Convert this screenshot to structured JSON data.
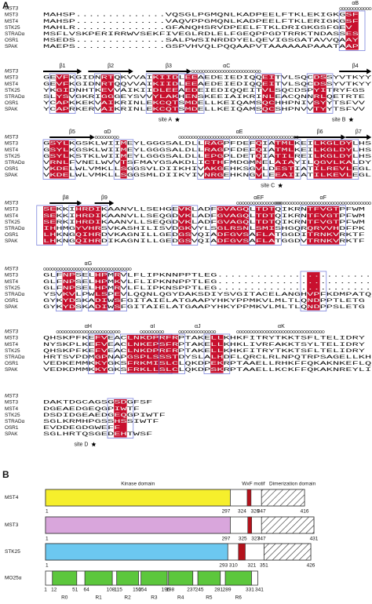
{
  "panel_a": {
    "label": "A",
    "names": [
      "MST3",
      "MST4",
      "STK25",
      "STRADα",
      "OSR1",
      "SPAK"
    ],
    "blocks": [
      {
        "ss_label": "MST3",
        "ss": [
          "αB"
        ],
        "sites": [],
        "rows": [
          "MAHSP..............VQSGLPGMQNLKADPEELFTKLEKIGKGSF",
          "MAHSP..............VAQVPPGMQNLKADPEELFTKLERIGKGSF",
          "MAHLR..............GFANQHSRVDPEELFTKLDRIGKGSFGEV",
          "MSFLVSKPERIRRWVSEKFIVEGLRDLELFGEQPPGDTRRKTNDASSES",
          "MSEDS..............SALPWSINRDDYELQEVIGSGATAVVQAAY",
          "MAEPS..............GSPVHVQLPQQAAPVTAAAAAAPAAATAAP"
        ]
      },
      {
        "ss_label": "MST3",
        "ss": [
          "β1",
          "β2",
          "β3",
          "αC",
          "β4"
        ],
        "sites": [
          "site A",
          "site B"
        ],
        "rows": [
          "GEVFKGIDNRTQKVVAIKIIDLEEAEDEIEDIQQEITVLSQCDSSYVTKYY",
          "GEVFKGIDNRTQQVVAIKIIDLEEAEDEIEDIQQEITVLSQCDSSYVTKYY",
          "YKGIDNHTKEVVAIKIIDLEEAEDEIEDIQQEITVLSQCDSPYITRYFGS",
          "SLYSVGKRIGGGEYSVVYLAKHENSKEEIAIKRINLEACQNNRLQETRTE",
          "YCAPKKEKVAIKRINLEKCQTSMDELLKEIQAMSQCHHPNIVSYYTSFVV",
          "YCAPRKERVAIKRINLEKCQTSMDELLKEIQAMSQCSHPNVVTYYTSFVV"
        ]
      },
      {
        "ss_label": "MST3",
        "ss": [
          "β5",
          "αD",
          "αE",
          "β6",
          "β7"
        ],
        "sites": [
          "site C"
        ],
        "rows": [
          "GSYLKGSKLWIIMEYLGGGSALDLLRAGPFDEFQIATMLKEILKGLDYLHS",
          "GSYLKGSKLWIIMEYLGGGSALDLLRAGPFDEFQIATMLKEILKGLDYLHS",
          "GSYLKSTKLWIIMEYLGGGSALDLLEPGPLDETQIATILREILKGLDYLHS",
          "VRNLFVNELWVVTSFMAYGSAKDLICTHFMDGMNELAIAYILQGVLKALDY",
          "VKDELWLVMKLLSGGSVLDIIKHIVAKGEHKSGVLDESTIATILREVLEGL",
          "VKDELWLVMKLLSGGSMLDIIKYIVNRGEHKNGVLEEAIIATILKEVLEGL"
        ]
      },
      {
        "ss_label": "MST3",
        "ss": [
          "β8",
          "β9",
          "αEF",
          "αF"
        ],
        "sites": [],
        "rows": [
          "SEKKIHRDIKAANVLLSEHGEVKLADFGVAGQLTDTQIKRNTFVGTPFWM",
          "SEKKIHRDIKAANVLLSEQGDVKLADFGVAGQLTDTQIKRNTFVGTPFWM",
          "SERKIHRDIKAANVLLSEQGDVKLADFGVAGQLTDTQIKRNTFVGTPFWM",
          "IHHMGYVHRSVKASHILISVDGKVYLSGLRSNLSMISHGQRQRVVHDFPK",
          "LHKNGQIHRDVKAGNILLGEDGSVQIADFGVSAFLATGGDITRNKVRKTF",
          "LHKNGQIHRDIKAGNILLGEDGSVQIADFGVSAFLATGGDVTRNKVRKTF"
        ]
      },
      {
        "ss_label": "MST3",
        "ss": [
          "αG"
        ],
        "sites": [],
        "rows": [
          "GLFNPSELHPMRVLFLIPKNNPPTLEG.........................",
          "GLFNPSELHPMKVLFLIPKNNPPTLEG.........................",
          "GLFNPSELHPMRVLFLIPKNSPPTLEG.........................",
          "YSVKVLPWLSPEVLQQNLQGYDAKSDIYSVGITACELANGHVPFKDMPATQ",
          "GYKYDSKADIWSFGITAIELATGAAPYHKYPPMKVLMLTLQNDPPTLETG",
          "GYKYDSKADIWSFGITAIELATGAAPYHKYPPMKVLMLTLQNDPPSLETG"
        ]
      },
      {
        "ss_label": "MST3",
        "ss": [
          "αH",
          "αI",
          "αJ",
          "αK"
        ],
        "sites": [],
        "rows": [
          "QHSKPFKEFVEACLNKDPRFRPTAKELLKHKFITRYTKKTSFLTELIDRY",
          "NYSKPLKEFVEACLNKEPSFRPTAKELLKHKLIVRFAKKTSYLTELIDRY",
          "QHSKPFKEFVEACLNKDPRFRPTAKELLKHKFITRYTKKTSFLTELIDRY",
          "HRTSVPDMGPNAPGSPLSSSTDYSLALHDFLQRCLRLNPQTRPSAGELLKH",
          "VEDKEMMKKYGKSFRKMISLCLQKDPEKRPTAAELLRHKFFQKAKNKEFLQ",
          "VEDKDMMKKYGKSFRKLLSLCLQKDPSKRPTAAELLKCKFFQKAKNREYLI"
        ]
      },
      {
        "ss_label": "MST3",
        "ss": [],
        "sites": [
          "site D"
        ],
        "rows": [
          "DAKTDGCAGSGSDGFSF",
          "DGEAEDGEQGPIWTF",
          "DSDIDGEAEDGEQGPIWTF",
          "SGLKRMHPGSSHSSIWTF",
          "EVDDEGDGWEFF",
          "SGLHRTQSGEDEHTWSF"
        ]
      }
    ]
  },
  "panel_b": {
    "label": "B",
    "domain_labels": {
      "kinase": "Kinase domain",
      "wxf": "WxF motif",
      "dimer": "Dimerization domain"
    },
    "proteins": [
      {
        "name": "MST4",
        "color": "#f6ef2c",
        "kinase": [
          1,
          297
        ],
        "wxf": [
          324,
          326
        ],
        "dimer": [
          347,
          416
        ]
      },
      {
        "name": "MST3",
        "color": "#d9a6dc",
        "kinase": [
          1,
          297
        ],
        "wxf": [
          325,
          327
        ],
        "dimer": [
          347,
          431
        ]
      },
      {
        "name": "STK25",
        "color": "#6cc8f0",
        "kinase": [
          1,
          293
        ],
        "wxf": [
          310,
          321
        ],
        "dimer": [
          351,
          426
        ]
      }
    ],
    "mo25": {
      "name": "MO25α",
      "color": "#5cc73c",
      "range": [
        1,
        341
      ],
      "repeats": [
        {
          "name": "R0",
          "range": [
            12,
            51
          ]
        },
        {
          "name": "R1",
          "range": [
            64,
            108
          ]
        },
        {
          "name": "R2",
          "range": [
            115,
            150
          ]
        },
        {
          "name": "R3",
          "range": [
            154,
            196
          ]
        },
        {
          "name": "R4",
          "range": [
            198,
            237
          ]
        },
        {
          "name": "R5",
          "range": [
            245,
            281
          ]
        },
        {
          "name": "R6",
          "range": [
            289,
            331
          ]
        }
      ]
    }
  }
}
